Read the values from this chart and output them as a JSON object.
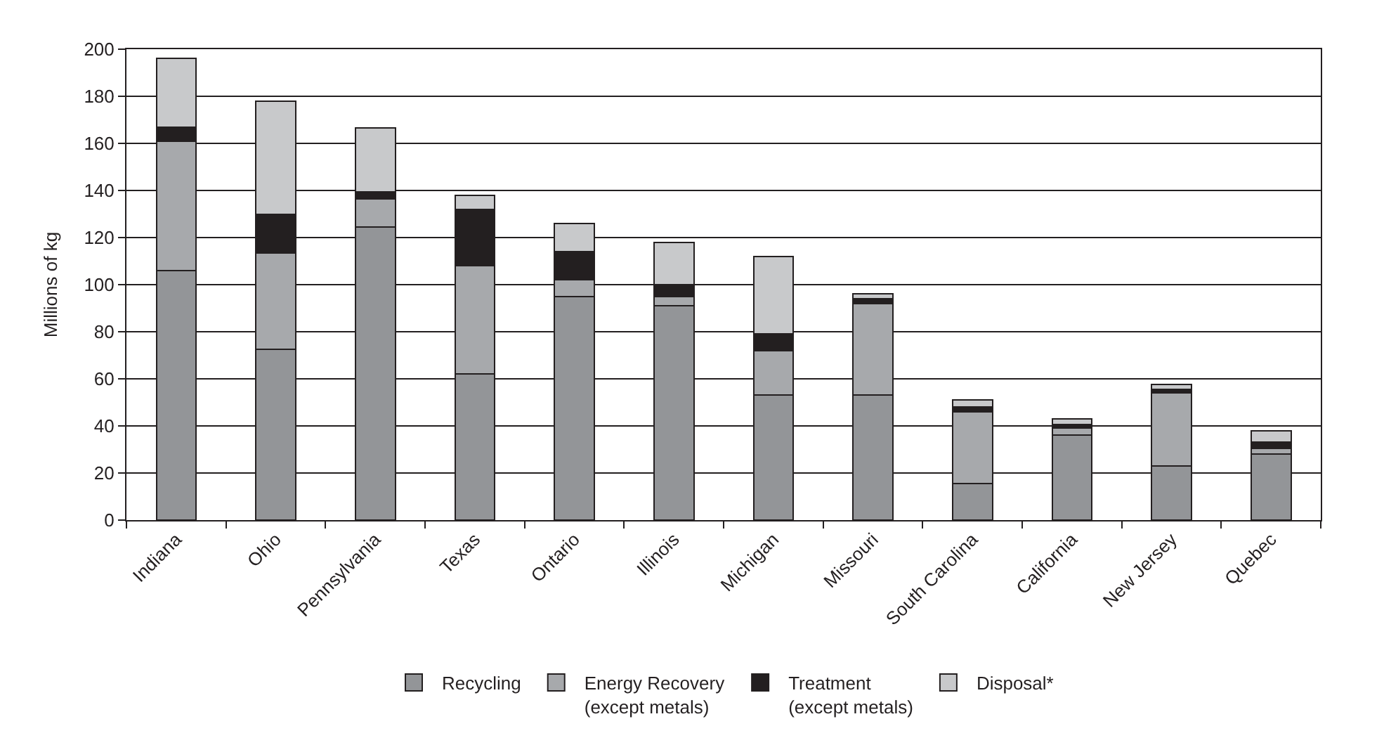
{
  "chart_data": {
    "type": "bar",
    "stacked": true,
    "ylabel": "Millions of kg",
    "categories": [
      "Indiana",
      "Ohio",
      "Pennsylvania",
      "Texas",
      "Ontario",
      "Illinois",
      "Michigan",
      "Missouri",
      "South Carolina",
      "California",
      "New Jersey",
      "Quebec"
    ],
    "series": [
      {
        "name": "Recycling",
        "color": "#939598",
        "values": [
          106,
          72.5,
          124.5,
          62,
          95,
          91,
          53,
          53,
          15.5,
          36,
          23,
          28
        ]
      },
      {
        "name": "Energy Recovery\n(except metals)",
        "color": "#a7a9ac",
        "values": [
          55,
          41,
          12,
          46,
          7,
          4,
          19,
          39,
          30.5,
          3,
          31,
          2.5
        ]
      },
      {
        "name": "Treatment\n(except metals)",
        "color": "#231f20",
        "values": [
          6,
          16.5,
          3,
          24,
          12,
          5,
          7,
          2,
          2,
          1.5,
          1.5,
          2.5
        ]
      },
      {
        "name": "Disposal*",
        "color": "#c8c9cb",
        "values": [
          29,
          48,
          27,
          6,
          12,
          18,
          33,
          2,
          3,
          2.5,
          2,
          5
        ]
      }
    ],
    "ylim": [
      0,
      200
    ],
    "yticks": [
      0,
      20,
      40,
      60,
      80,
      100,
      120,
      140,
      160,
      180,
      200
    ],
    "grid": "y",
    "legend": "bottom"
  }
}
